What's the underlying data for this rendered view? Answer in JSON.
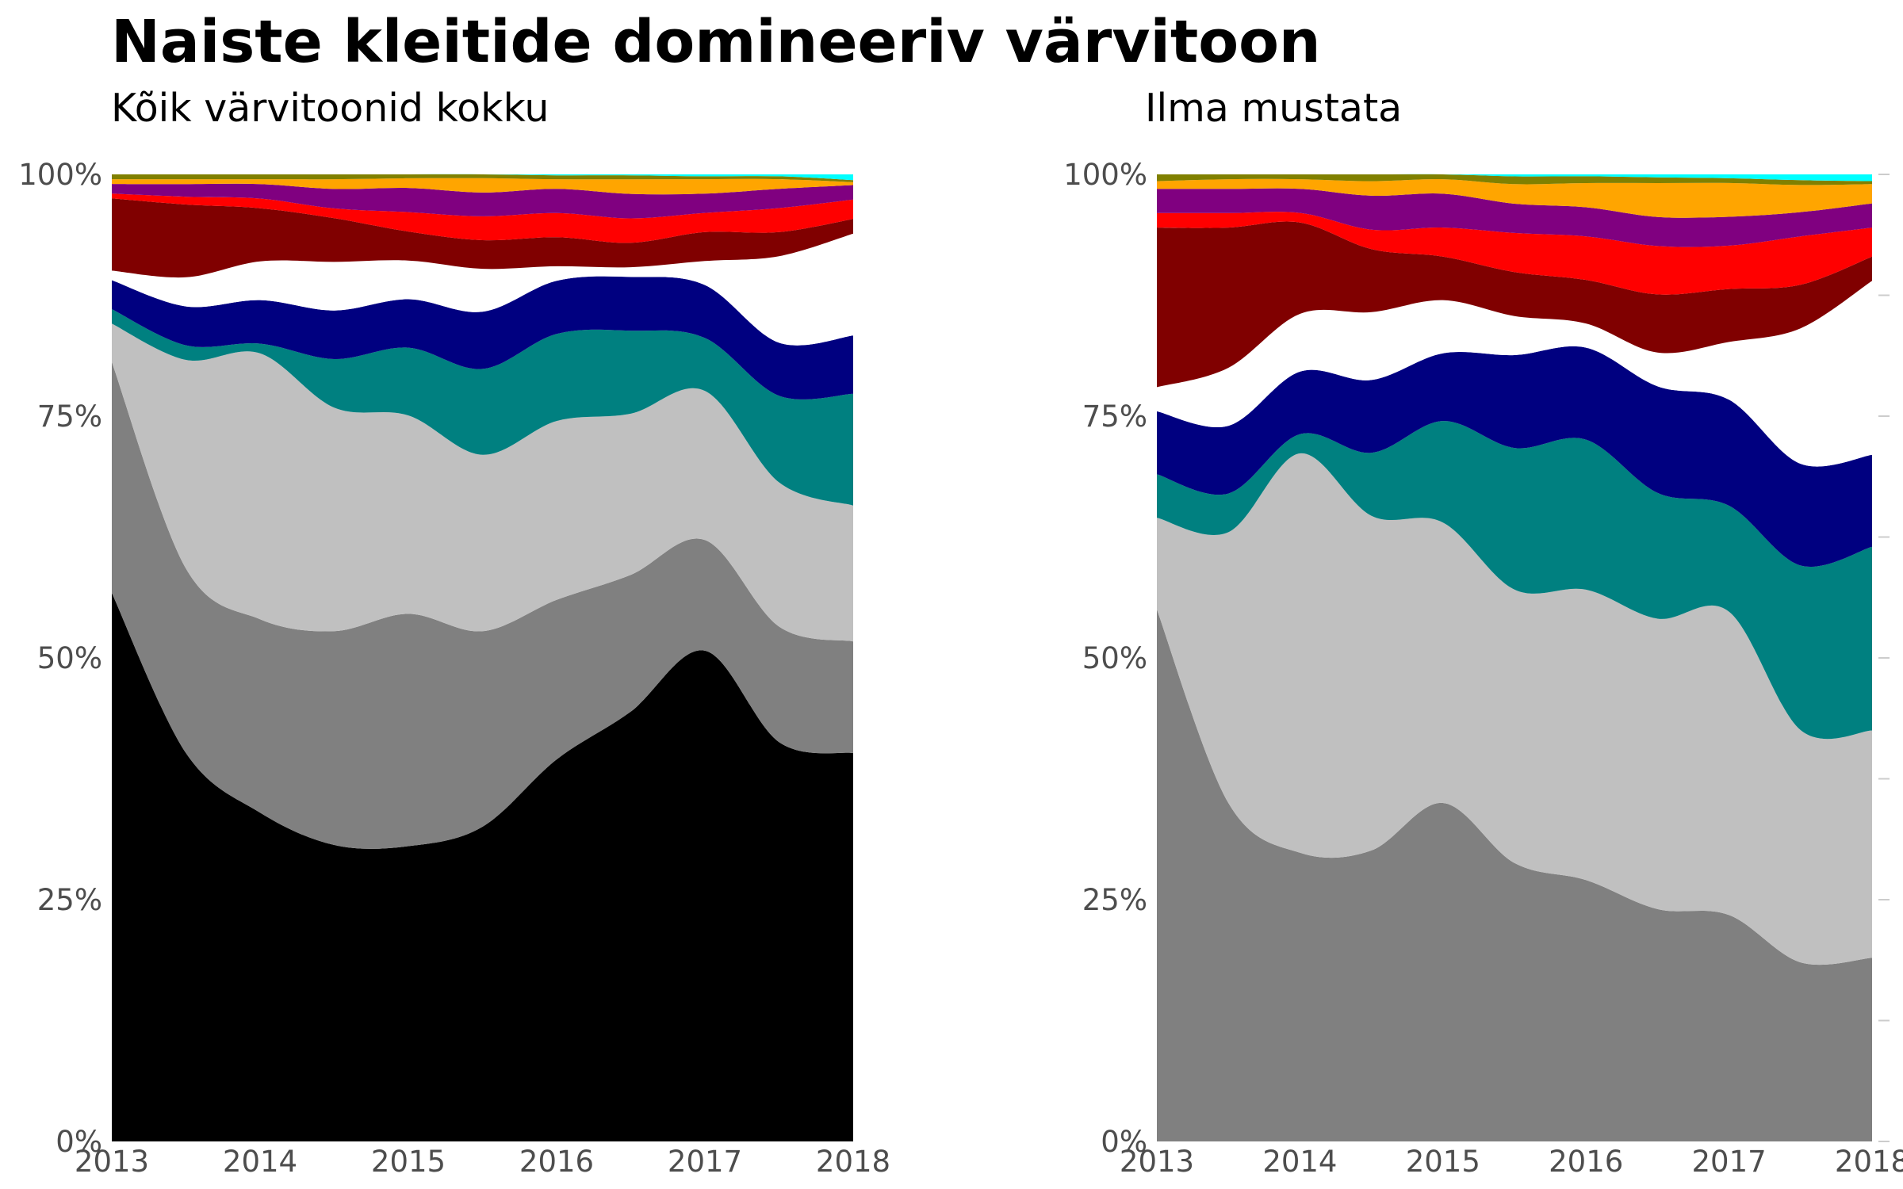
{
  "title": "Naiste kleitide domineeriv värvitoon",
  "colors": {
    "black": "#000000",
    "gray": "#808080",
    "silver": "#c0c0c0",
    "teal": "#008080",
    "navy": "#000080",
    "white": "#ffffff",
    "maroon": "#800000",
    "red": "#ff0000",
    "purple": "#800080",
    "orange": "#ffa500",
    "olive": "#808000",
    "cyan": "#00ffff"
  },
  "chart_data": [
    {
      "type": "area",
      "stacked": "percent",
      "subtitle": "Kõik värvitoonid kokku",
      "x": [
        2013,
        2013.5,
        2014,
        2014.5,
        2015,
        2015.5,
        2016,
        2016.5,
        2017,
        2017.5,
        2018
      ],
      "x_ticks": [
        "2013",
        "2014",
        "2015",
        "2016",
        "2017",
        "2018"
      ],
      "y_ticks": [
        "0%",
        "25%",
        "50%",
        "75%",
        "100%"
      ],
      "ylim": [
        0,
        100
      ],
      "grid": false,
      "legend": "none",
      "series": [
        {
          "color": "black",
          "values": [
            57,
            40,
            34,
            30.5,
            30.5,
            33,
            39.5,
            44,
            51,
            41.5,
            40
          ]
        },
        {
          "color": "gray",
          "values": [
            24,
            19,
            20,
            22,
            24,
            20.5,
            16.5,
            14,
            11.5,
            12,
            11.5
          ]
        },
        {
          "color": "silver",
          "values": [
            4,
            21.5,
            27.5,
            23,
            20.5,
            18.5,
            18.5,
            16.5,
            15.5,
            15,
            14
          ]
        },
        {
          "color": "teal",
          "values": [
            1.5,
            1.5,
            1,
            5,
            7,
            9,
            9,
            8.5,
            5.5,
            9,
            11.5
          ]
        },
        {
          "color": "navy",
          "values": [
            3,
            4,
            4.5,
            5,
            5,
            6,
            5.5,
            5.5,
            5.5,
            5.5,
            6
          ]
        },
        {
          "color": "white",
          "values": [
            1,
            3,
            4,
            5,
            4,
            4.5,
            1.5,
            1,
            2.5,
            9,
            10.5
          ]
        },
        {
          "color": "maroon",
          "values": [
            7.5,
            7.5,
            5.5,
            4.5,
            3,
            3,
            3,
            2.5,
            3,
            2.5,
            1.5
          ]
        },
        {
          "color": "red",
          "values": [
            0.5,
            0.8,
            1,
            1,
            2,
            2.5,
            2.5,
            2.5,
            2,
            2.5,
            2
          ]
        },
        {
          "color": "purple",
          "values": [
            1,
            1.3,
            1.5,
            2,
            2.5,
            2.5,
            2.5,
            2.5,
            2,
            2,
            1.5
          ]
        },
        {
          "color": "orange",
          "values": [
            0.5,
            0.5,
            0.5,
            1,
            1,
            1.5,
            1,
            1.5,
            1.5,
            1,
            0.3
          ]
        },
        {
          "color": "olive",
          "values": [
            0.5,
            0.5,
            0.5,
            0.5,
            0.4,
            0.4,
            0.4,
            0.4,
            0.3,
            0.3,
            0.2
          ]
        },
        {
          "color": "cyan",
          "values": [
            0,
            0,
            0,
            0,
            0,
            0,
            0.1,
            0.1,
            0.2,
            0.2,
            0.6
          ]
        }
      ]
    },
    {
      "type": "area",
      "stacked": "percent",
      "subtitle": "Ilma mustata",
      "x": [
        2013,
        2013.5,
        2014,
        2014.5,
        2015,
        2015.5,
        2016,
        2016.5,
        2017,
        2017.5,
        2018
      ],
      "x_ticks": [
        "2013",
        "2014",
        "2015",
        "2016",
        "2017",
        "2018"
      ],
      "y_ticks": [
        "0%",
        "25%",
        "50%",
        "75%",
        "100%"
      ],
      "ylim": [
        0,
        100
      ],
      "grid": false,
      "legend": "none",
      "series": [
        {
          "color": "gray",
          "values": [
            55,
            35,
            30,
            30,
            35,
            28.5,
            27,
            24,
            23.5,
            18.5,
            19
          ]
        },
        {
          "color": "silver",
          "values": [
            9.5,
            28,
            41.5,
            34.5,
            29,
            28,
            30,
            30,
            31.5,
            24,
            23.5
          ]
        },
        {
          "color": "teal",
          "values": [
            4.5,
            4,
            2,
            6.5,
            10.5,
            14.5,
            15.5,
            13,
            11,
            17,
            19
          ]
        },
        {
          "color": "navy",
          "values": [
            6.5,
            7,
            6.5,
            7.5,
            7,
            9.5,
            9.5,
            11,
            11,
            10.5,
            9.5
          ]
        },
        {
          "color": "white",
          "values": [
            2.5,
            6,
            6,
            7,
            5.5,
            4,
            2.5,
            3.5,
            6,
            14,
            18
          ]
        },
        {
          "color": "maroon",
          "values": [
            16.5,
            14.5,
            9.5,
            6.5,
            4.5,
            4.5,
            4.5,
            6,
            5.5,
            4.5,
            2.5
          ]
        },
        {
          "color": "red",
          "values": [
            1.5,
            1.5,
            1,
            2,
            3,
            4,
            4.5,
            5,
            4.5,
            5,
            3
          ]
        },
        {
          "color": "purple",
          "values": [
            2.5,
            2.5,
            2.5,
            3.5,
            3.5,
            3,
            3,
            3,
            3,
            2.5,
            2.5
          ]
        },
        {
          "color": "orange",
          "values": [
            0.8,
            1,
            1,
            1.5,
            1.5,
            2,
            2.5,
            3.5,
            3.5,
            2.8,
            2
          ]
        },
        {
          "color": "olive",
          "values": [
            0.7,
            0.5,
            0.5,
            0.7,
            0.5,
            0.8,
            0.7,
            0.6,
            0.5,
            0.5,
            0.3
          ]
        },
        {
          "color": "cyan",
          "values": [
            0,
            0,
            0,
            0,
            0,
            0.2,
            0.2,
            0.3,
            0.4,
            0.6,
            0.7
          ]
        }
      ]
    }
  ]
}
